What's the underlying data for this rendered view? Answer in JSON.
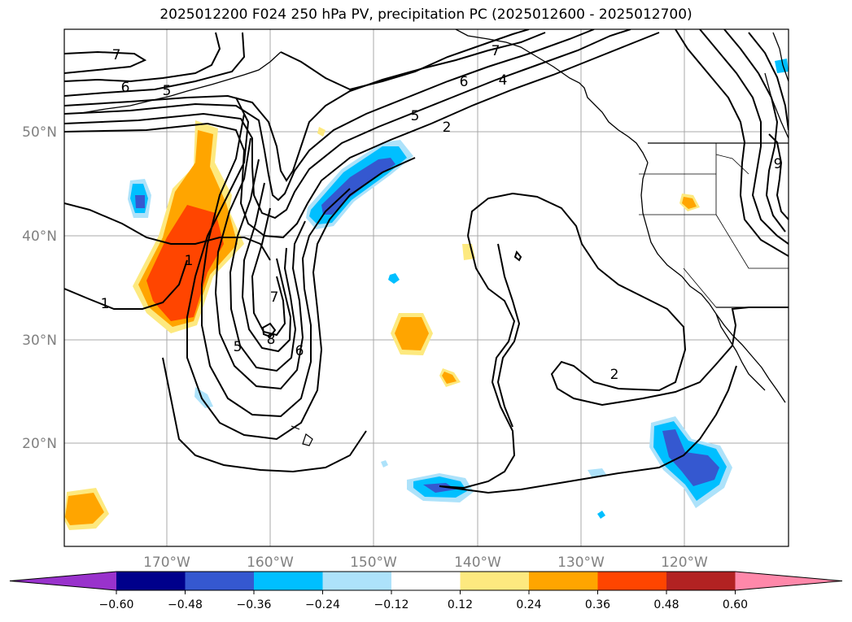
{
  "title": "2025012200 F024 250 hPa PV, precipitation PC (2025012600 - 2025012700)",
  "map": {
    "lat_labels": [
      "50°N",
      "40°N",
      "30°N",
      "20°N"
    ],
    "lon_labels": [
      "170°W",
      "160°W",
      "150°W",
      "140°W",
      "130°W",
      "120°W"
    ],
    "contour_labels": [
      "7",
      "6",
      "5",
      "7",
      "6",
      "4",
      "5",
      "2",
      "1",
      "1",
      "7",
      "8",
      "5",
      "6",
      "2",
      "9"
    ],
    "colors": {
      "c1": "#fde97f",
      "c2": "#ffa500",
      "c3": "#ff4500",
      "b1": "#ade2fa",
      "b2": "#00bfff",
      "b3": "#3558d0"
    }
  },
  "colorbar": {
    "ticks": [
      "−0.60",
      "−0.48",
      "−0.36",
      "−0.24",
      "−0.12",
      "0.12",
      "0.24",
      "0.36",
      "0.48",
      "0.60"
    ],
    "colors": [
      "#9932cc",
      "#00008b",
      "#3558d0",
      "#00bfff",
      "#ade2fa",
      "#ffffff",
      "#fde97f",
      "#ffa500",
      "#ff4500",
      "#b22222",
      "#ff88aa"
    ]
  }
}
